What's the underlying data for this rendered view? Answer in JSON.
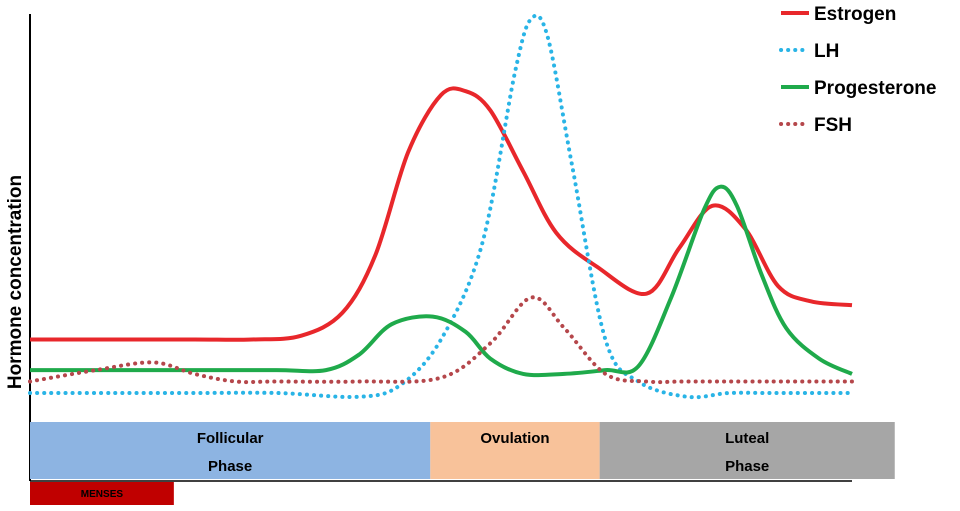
{
  "chart_data": {
    "type": "line",
    "title": "",
    "ylabel": "Hormone concentration",
    "xlabel": "",
    "grid": false,
    "legend_position": "top-right",
    "x_range": [
      0,
      100
    ],
    "y_range": [
      0,
      100
    ],
    "series": [
      {
        "name": "Estrogen",
        "color": "#e8272b",
        "style": "solid",
        "points": [
          [
            0,
            14
          ],
          [
            10,
            14
          ],
          [
            20,
            14
          ],
          [
            27,
            14
          ],
          [
            33,
            15
          ],
          [
            38,
            21
          ],
          [
            42,
            36
          ],
          [
            46,
            63
          ],
          [
            50,
            78
          ],
          [
            53,
            79
          ],
          [
            56,
            74
          ],
          [
            60,
            58
          ],
          [
            64,
            42
          ],
          [
            69,
            33
          ],
          [
            75,
            26
          ],
          [
            79,
            38
          ],
          [
            83,
            49
          ],
          [
            87,
            43
          ],
          [
            91,
            28
          ],
          [
            95,
            24
          ],
          [
            100,
            23
          ]
        ]
      },
      {
        "name": "LH",
        "color": "#29b4e6",
        "style": "dotted",
        "points": [
          [
            0,
            0
          ],
          [
            10,
            0
          ],
          [
            20,
            0
          ],
          [
            30,
            0
          ],
          [
            40,
            -1
          ],
          [
            45,
            2
          ],
          [
            50,
            14
          ],
          [
            55,
            39
          ],
          [
            59,
            84
          ],
          [
            61,
            98
          ],
          [
            63,
            93
          ],
          [
            66,
            59
          ],
          [
            70,
            14
          ],
          [
            74,
            3
          ],
          [
            80,
            -1
          ],
          [
            85,
            0
          ],
          [
            90,
            0
          ],
          [
            100,
            0
          ]
        ]
      },
      {
        "name": "Progesterone",
        "color": "#1faa4b",
        "style": "solid",
        "points": [
          [
            0,
            6
          ],
          [
            10,
            6
          ],
          [
            20,
            6
          ],
          [
            30,
            6
          ],
          [
            36,
            6
          ],
          [
            40,
            10
          ],
          [
            44,
            18
          ],
          [
            49,
            20
          ],
          [
            53,
            16
          ],
          [
            56,
            9
          ],
          [
            60,
            5
          ],
          [
            65,
            5
          ],
          [
            70,
            6
          ],
          [
            74,
            7
          ],
          [
            78,
            25
          ],
          [
            82,
            48
          ],
          [
            84,
            54
          ],
          [
            86,
            49
          ],
          [
            89,
            31
          ],
          [
            92,
            17
          ],
          [
            96,
            9
          ],
          [
            100,
            5
          ]
        ]
      },
      {
        "name": "FSH",
        "color": "#b5474b",
        "style": "dotted",
        "points": [
          [
            0,
            3
          ],
          [
            8,
            6
          ],
          [
            15,
            8
          ],
          [
            20,
            5
          ],
          [
            25,
            3
          ],
          [
            30,
            3
          ],
          [
            40,
            3
          ],
          [
            50,
            4
          ],
          [
            56,
            13
          ],
          [
            61,
            25
          ],
          [
            65,
            17
          ],
          [
            70,
            5
          ],
          [
            75,
            3
          ],
          [
            80,
            3
          ],
          [
            90,
            3
          ],
          [
            100,
            3
          ]
        ]
      }
    ],
    "phases": [
      {
        "label_line1": "Follicular",
        "label_line2": "Phase",
        "start": 0,
        "end": 48.7,
        "color": "#8db4e2"
      },
      {
        "label_line1": "Ovulation",
        "label_line2": "",
        "start": 48.7,
        "end": 69.3,
        "color": "#f8c29a"
      },
      {
        "label_line1": "Luteal",
        "label_line2": "Phase",
        "start": 69.3,
        "end": 105.2,
        "color": "#a6a6a6"
      }
    ],
    "menses": {
      "label": "MENSES",
      "start": 0,
      "end": 17.5,
      "color": "#c00000"
    }
  }
}
